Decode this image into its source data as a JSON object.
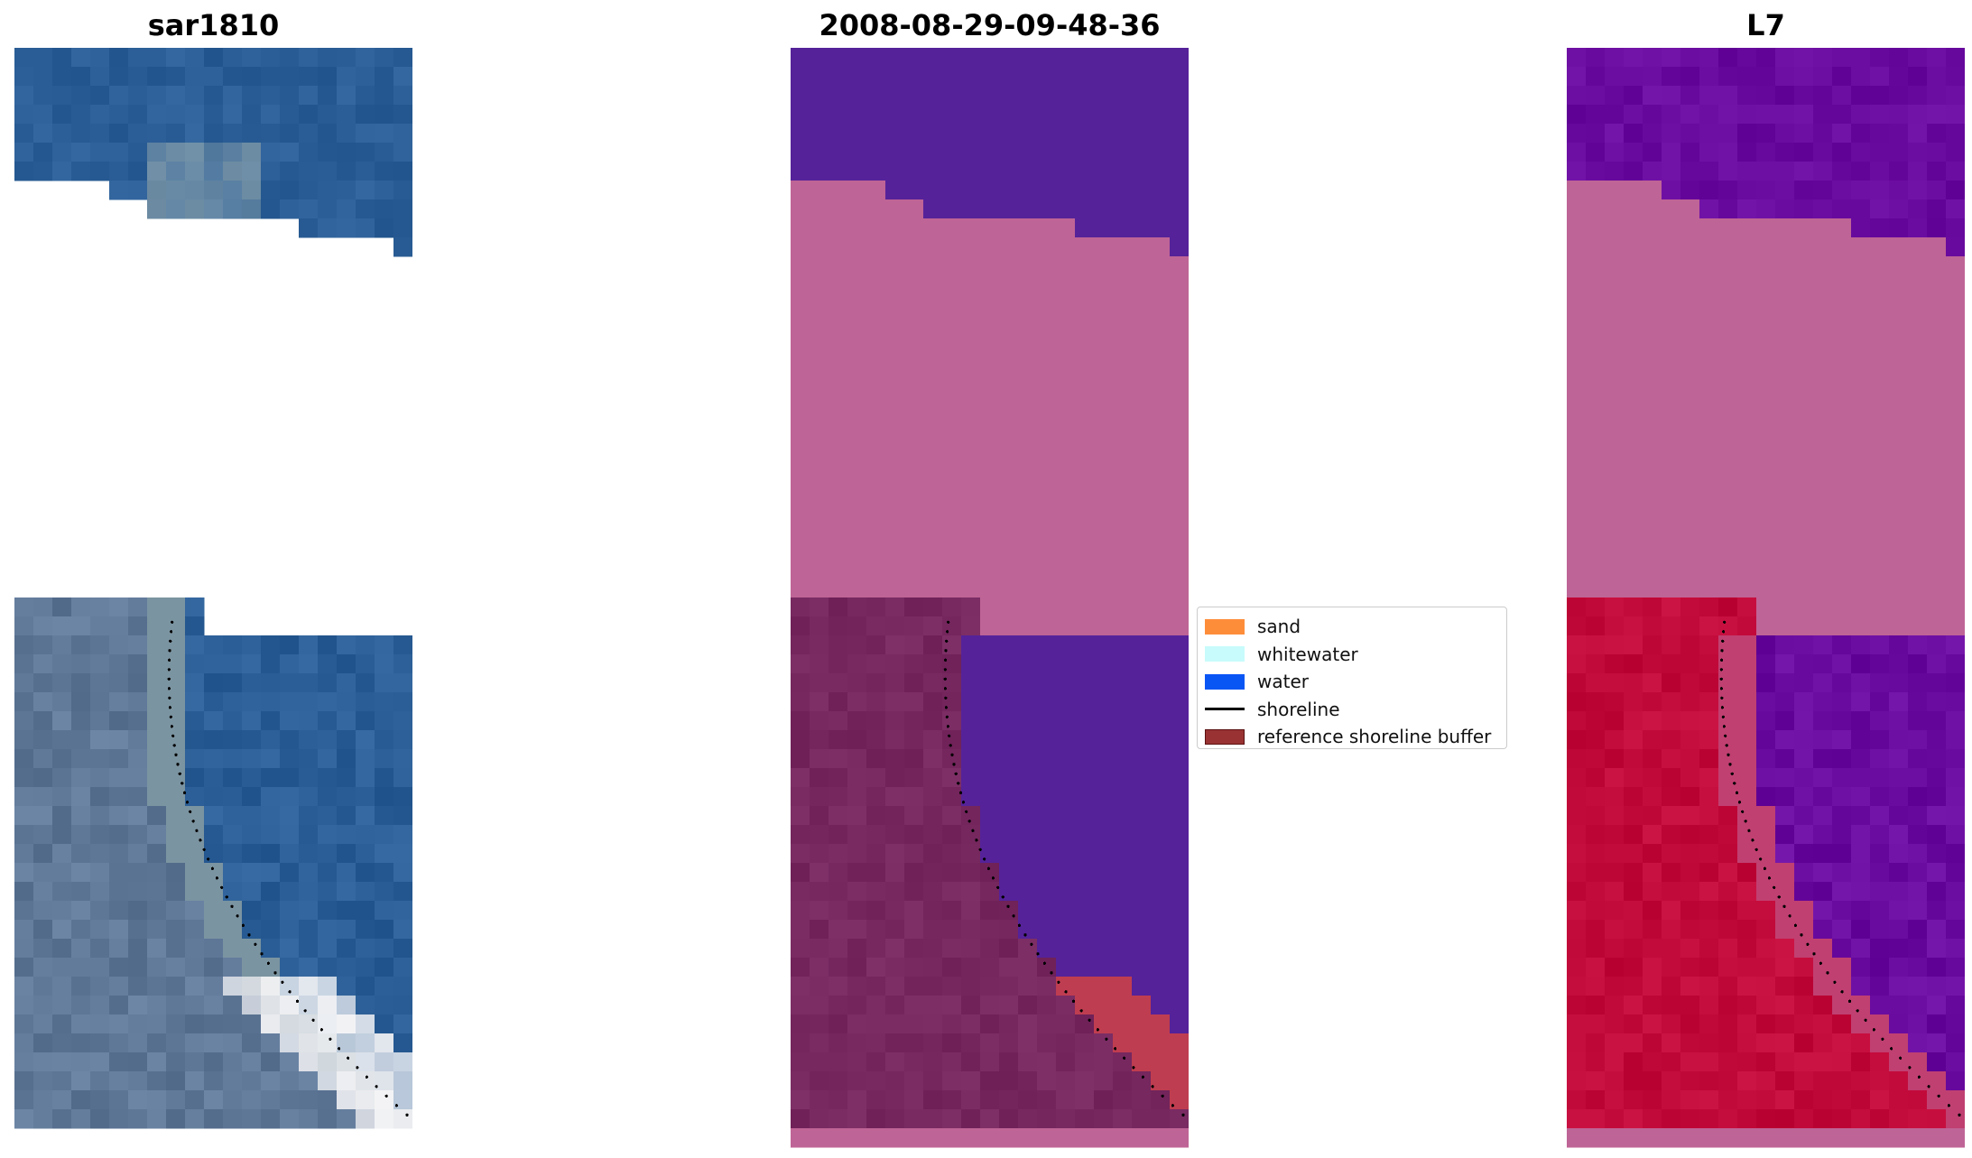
{
  "panels": [
    {
      "title": "sar1810"
    },
    {
      "title": "2008-08-29-09-48-36"
    },
    {
      "title": "L7"
    }
  ],
  "legend": {
    "items": [
      {
        "label": "sand",
        "color": "#fe8d3a",
        "kind": "patch"
      },
      {
        "label": "whitewater",
        "color": "#c8fbfb",
        "kind": "patch"
      },
      {
        "label": "water",
        "color": "#0a56f5",
        "kind": "patch"
      },
      {
        "label": "shoreline",
        "color": "#000000",
        "kind": "line"
      },
      {
        "label": "reference shoreline buffer",
        "color": "#993333",
        "kind": "patch"
      }
    ]
  },
  "colors": {
    "rgb_water": "#2b5e96",
    "rgb_land": "#5f7898",
    "rgb_foam": "#f4f4f6",
    "class_water": "#552299",
    "class_land": "#bf6496",
    "class_sand_shadow": "#76285f",
    "class_buffer": "#bf3d50",
    "false_water": "#6a0b9f",
    "false_land": "#bf6496",
    "false_sand": "#c20a3a"
  }
}
